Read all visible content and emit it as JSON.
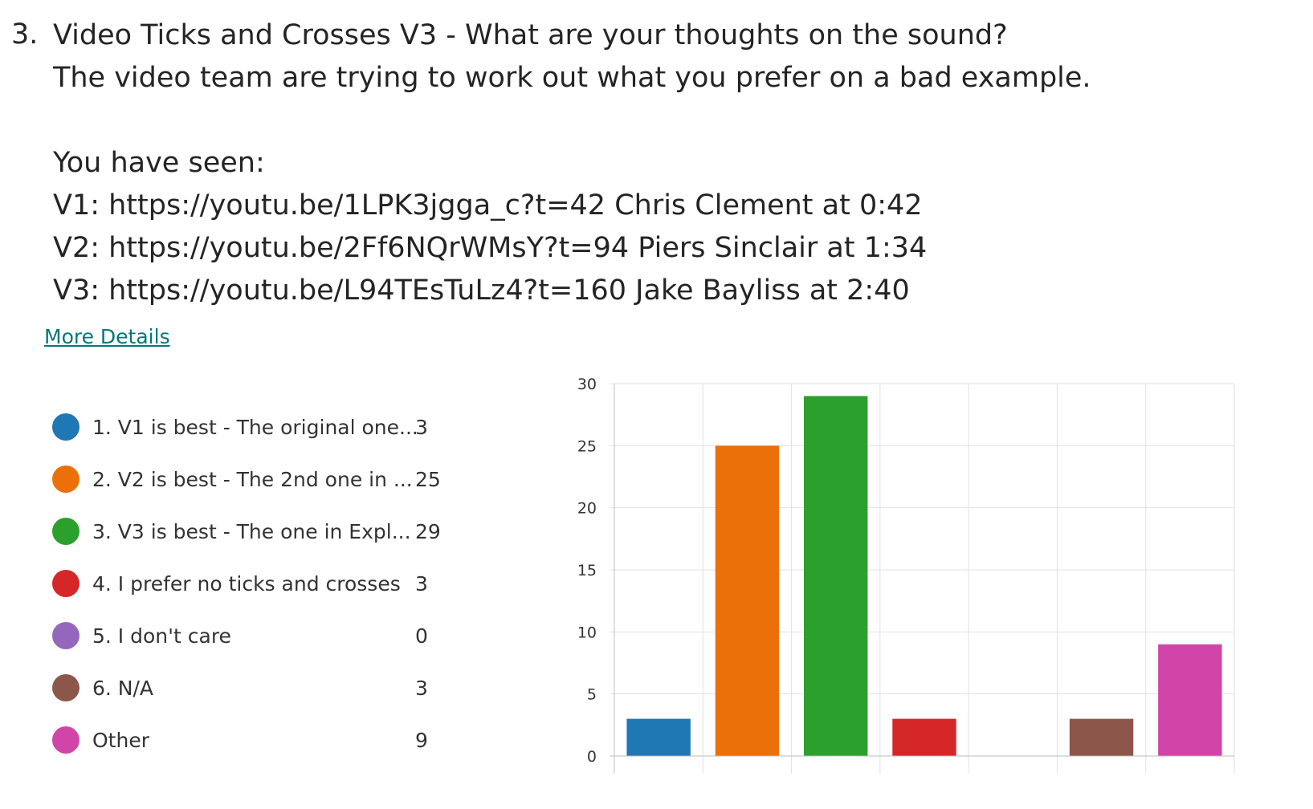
{
  "question": {
    "number": "3.",
    "lines": [
      "Video Ticks and Crosses V3 - What are your thoughts on the sound?",
      "The video team are trying to work out what you prefer on a bad example.",
      "",
      "You have seen:",
      "V1: https://youtu.be/1LPK3jgga_c?t=42 Chris Clement at 0:42",
      "V2: https://youtu.be/2Ff6NQrWMsY?t=94 Piers Sinclair at 1:34",
      "V3: https://youtu.be/L94TEsTuLz4?t=160 Jake Bayliss at 2:40"
    ],
    "more_details": "More Details"
  },
  "legend": [
    {
      "label": "1. V1 is best - The original one...",
      "count": "3",
      "color": "#1f77b4"
    },
    {
      "label": "2. V2 is best - The 2nd one in ...",
      "count": "25",
      "color": "#ec700a"
    },
    {
      "label": "3. V3 is best - The one in Expl...",
      "count": "29",
      "color": "#2ca02c"
    },
    {
      "label": "4. I prefer no ticks and crosses",
      "count": "3",
      "color": "#d62728"
    },
    {
      "label": "5. I don't care",
      "count": "0",
      "color": "#9467bd"
    },
    {
      "label": "6. N/A",
      "count": "3",
      "color": "#8c564b"
    },
    {
      "label": "Other",
      "count": "9",
      "color": "#d245a8"
    }
  ],
  "chart_data": {
    "type": "bar",
    "categories": [
      "1. V1 is best - The original one...",
      "2. V2 is best - The 2nd one in ...",
      "3. V3 is best - The one in Expl...",
      "4. I prefer no ticks and crosses",
      "5. I don't care",
      "6. N/A",
      "Other"
    ],
    "values": [
      3,
      25,
      29,
      3,
      0,
      3,
      9
    ],
    "colors": [
      "#1f77b4",
      "#ec700a",
      "#2ca02c",
      "#d62728",
      "#9467bd",
      "#8c564b",
      "#d245a8"
    ],
    "yticks": [
      0,
      5,
      10,
      15,
      20,
      25,
      30
    ],
    "ylim": [
      0,
      30
    ],
    "grid": true
  }
}
